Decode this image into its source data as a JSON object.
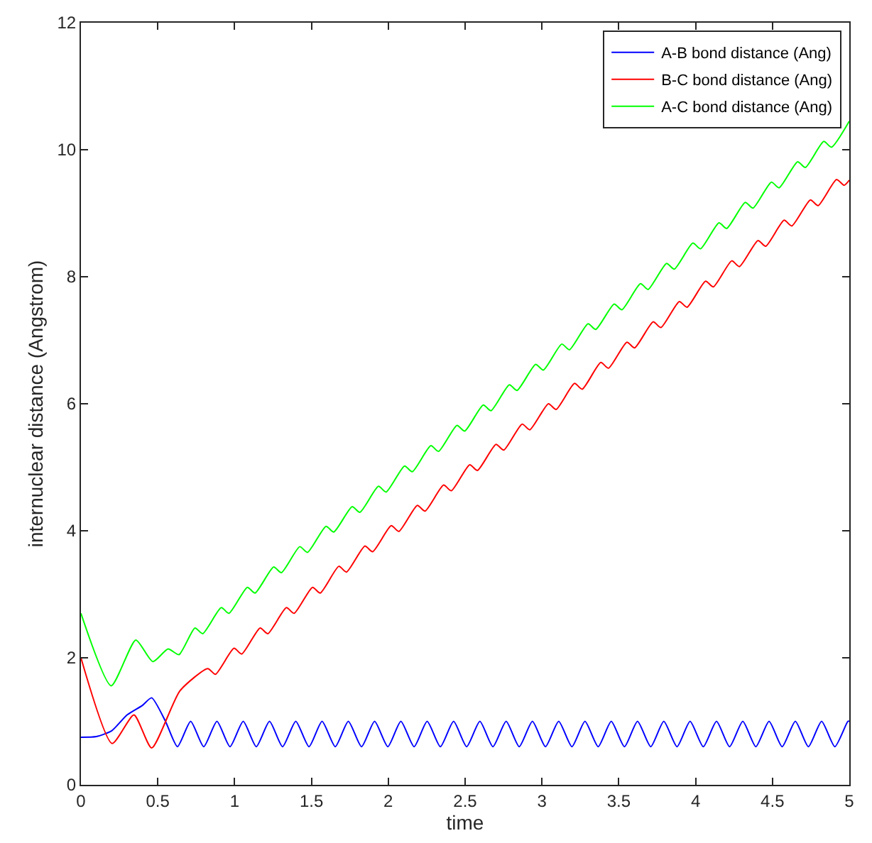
{
  "chart_data": {
    "type": "line",
    "xlabel": "time",
    "ylabel": "internuclear distance (Angstrom)",
    "xlim": [
      0,
      5
    ],
    "ylim": [
      0,
      12
    ],
    "xticks": [
      0,
      0.5,
      1,
      1.5,
      2,
      2.5,
      3,
      3.5,
      4,
      4.5,
      5
    ],
    "yticks": [
      0,
      2,
      4,
      6,
      8,
      10,
      12
    ],
    "legend": "top right",
    "marker": "none",
    "line_style": "solid",
    "series": [
      {
        "name": "A-B bond distance (Ang)",
        "color": "#0000ff",
        "x": [
          0,
          0.1,
          0.2,
          0.3,
          0.4,
          0.46,
          0.55,
          0.628,
          0.714,
          0.799,
          0.885,
          0.97,
          1.056,
          1.141,
          1.227,
          1.312,
          1.398,
          1.484,
          1.569,
          1.655,
          1.74,
          1.826,
          1.911,
          1.997,
          2.082,
          2.168,
          2.253,
          2.339,
          2.425,
          2.51,
          2.596,
          2.681,
          2.767,
          2.852,
          2.938,
          3.023,
          3.109,
          3.195,
          3.28,
          3.366,
          3.451,
          3.537,
          3.622,
          3.708,
          3.793,
          3.879,
          3.964,
          4.05,
          4.136,
          4.221,
          4.307,
          4.392,
          4.478,
          4.563,
          4.649,
          4.734,
          4.82,
          4.906,
          4.991,
          5.0
        ],
        "values": [
          0.75,
          0.76,
          0.85,
          1.1,
          1.25,
          1.37,
          1.0,
          0.6,
          1.0,
          0.6,
          1.0,
          0.6,
          1.0,
          0.6,
          1.0,
          0.6,
          1.0,
          0.6,
          1.0,
          0.6,
          1.0,
          0.6,
          1.0,
          0.6,
          1.0,
          0.6,
          1.0,
          0.6,
          1.0,
          0.6,
          1.0,
          0.6,
          1.0,
          0.6,
          1.0,
          0.6,
          1.0,
          0.6,
          1.0,
          0.6,
          1.0,
          0.6,
          1.0,
          0.6,
          1.0,
          0.6,
          1.0,
          0.6,
          1.0,
          0.6,
          1.0,
          0.6,
          1.0,
          0.6,
          1.0,
          0.6,
          1.0,
          0.6,
          1.0,
          1.0
        ]
      },
      {
        "name": "B-C bond distance (Ang)",
        "color": "#ff0000",
        "x": [
          0,
          0.203,
          0.345,
          0.46,
          0.644,
          0.825,
          0.875,
          0.996,
          1.046,
          1.166,
          1.216,
          1.337,
          1.387,
          1.507,
          1.557,
          1.678,
          1.728,
          1.848,
          1.898,
          2.019,
          2.069,
          2.189,
          2.239,
          2.36,
          2.41,
          2.53,
          2.58,
          2.701,
          2.751,
          2.871,
          2.921,
          3.042,
          3.092,
          3.212,
          3.262,
          3.383,
          3.433,
          3.553,
          3.603,
          3.724,
          3.774,
          3.894,
          3.944,
          4.065,
          4.115,
          4.235,
          4.285,
          4.406,
          4.456,
          4.576,
          4.626,
          4.747,
          4.797,
          4.917,
          4.967,
          5.0
        ],
        "values": [
          2.0,
          0.65,
          1.1,
          0.58,
          1.48,
          1.83,
          1.74,
          2.15,
          2.06,
          2.47,
          2.38,
          2.79,
          2.7,
          3.11,
          3.02,
          3.44,
          3.35,
          3.76,
          3.67,
          4.08,
          3.99,
          4.4,
          4.31,
          4.72,
          4.63,
          5.04,
          4.95,
          5.36,
          5.27,
          5.68,
          5.59,
          6.0,
          5.91,
          6.32,
          6.23,
          6.65,
          6.56,
          6.97,
          6.88,
          7.29,
          7.2,
          7.61,
          7.52,
          7.93,
          7.84,
          8.25,
          8.16,
          8.57,
          8.48,
          8.89,
          8.8,
          9.21,
          9.12,
          9.53,
          9.44,
          9.52
        ]
      },
      {
        "name": "A-C bond distance (Ang)",
        "color": "#00ff00",
        "x": [
          0,
          0.197,
          0.357,
          0.468,
          0.567,
          0.638,
          0.742,
          0.792,
          0.913,
          0.963,
          1.083,
          1.133,
          1.254,
          1.304,
          1.424,
          1.474,
          1.595,
          1.645,
          1.765,
          1.815,
          1.936,
          1.986,
          2.106,
          2.156,
          2.277,
          2.327,
          2.447,
          2.497,
          2.618,
          2.668,
          2.788,
          2.838,
          2.959,
          3.009,
          3.129,
          3.179,
          3.3,
          3.35,
          3.47,
          3.52,
          3.641,
          3.691,
          3.811,
          3.861,
          3.982,
          4.032,
          4.152,
          4.202,
          4.323,
          4.373,
          4.493,
          4.543,
          4.664,
          4.714,
          4.834,
          4.884,
          5.0
        ],
        "values": [
          2.7,
          1.56,
          2.28,
          1.94,
          2.14,
          2.05,
          2.47,
          2.38,
          2.79,
          2.7,
          3.11,
          3.02,
          3.43,
          3.34,
          3.75,
          3.66,
          4.07,
          3.98,
          4.38,
          4.29,
          4.7,
          4.61,
          5.02,
          4.93,
          5.34,
          5.25,
          5.66,
          5.57,
          5.98,
          5.89,
          6.3,
          6.21,
          6.62,
          6.53,
          6.94,
          6.85,
          7.26,
          7.17,
          7.57,
          7.48,
          7.89,
          7.8,
          8.21,
          8.12,
          8.53,
          8.44,
          8.85,
          8.76,
          9.17,
          9.08,
          9.49,
          9.4,
          9.81,
          9.72,
          10.13,
          10.04,
          10.45
        ]
      }
    ]
  }
}
